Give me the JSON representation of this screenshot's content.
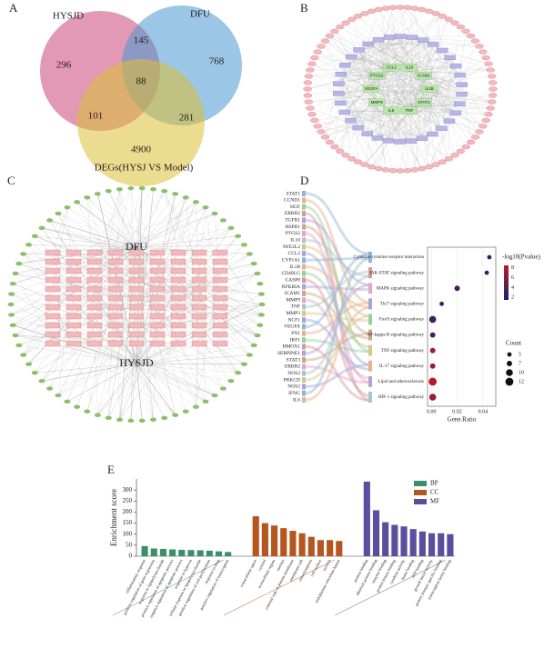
{
  "chart_data": [
    {
      "type": "venn",
      "panel": "A",
      "sets": [
        {
          "name": "HYSJD",
          "color": "#c8457a"
        },
        {
          "name": "DFU",
          "color": "#4a97d0"
        },
        {
          "name": "DEGs(HYSJ VS Model)",
          "color": "#dcc033"
        }
      ],
      "regions": [
        {
          "sets": "HYSJD",
          "value": 296
        },
        {
          "sets": "HYSJD DFU",
          "value": 145
        },
        {
          "sets": "DFU",
          "value": 768
        },
        {
          "sets": "HYSJD DFU DEGs",
          "value": 88
        },
        {
          "sets": "HYSJD DEGs",
          "value": 101
        },
        {
          "sets": "DFU DEGs",
          "value": 281
        },
        {
          "sets": "DEGs",
          "value": 4900
        }
      ]
    },
    {
      "type": "network",
      "panel": "B",
      "nodes": [
        "IL1B",
        "STAT3",
        "TNF",
        "IL6",
        "MMP9",
        "VEGFA",
        "PTGS2",
        "CCL2",
        "IL10",
        "ICAM1"
      ]
    },
    {
      "type": "network",
      "panel": "C",
      "nodes": [
        "DFU",
        "HYSJD"
      ]
    },
    {
      "type": "dot",
      "panel": "D",
      "genes": [
        "STAT1",
        "CCND1",
        "HGF",
        "ERBB2",
        "TGFB1",
        "HSPB1",
        "PTGS2",
        "IL10",
        "NFE2L2",
        "CCL2",
        "CYP1A1",
        "IL1B",
        "CD40LG",
        "CASP8",
        "NFKBIA",
        "ICAM1",
        "MMP9",
        "TNF",
        "MMP3",
        "NCF1",
        "VEGFA",
        "FN1",
        "IRF1",
        "HMOX1",
        "SERPINE1",
        "STAT3",
        "ERBB2",
        "NOS3",
        "PRKCD",
        "NOS2",
        "IFNG",
        "IL6"
      ],
      "categories": [
        "Cytokine-cytokine receptor interaction",
        "JAK-STAT signaling pathway",
        "MAPK signaling pathway",
        "Th17 signaling pathway",
        "FoxO signaling pathway",
        "NF-kappa B signaling pathway",
        "TNF signaling pathway",
        "IL-17 signaling pathway",
        "Lipid and atherosclerosis",
        "HIF-1 signaling pathway"
      ],
      "x": [
        0.045,
        0.043,
        0.02,
        0.008,
        0.001,
        0.001,
        0.001,
        0.001,
        0.001,
        0.001
      ],
      "size": [
        5,
        5,
        7,
        5,
        10,
        7,
        7,
        7,
        12,
        10
      ],
      "color_values": [
        2.5,
        2.5,
        3,
        3,
        3,
        3.5,
        7,
        7,
        8,
        7
      ],
      "xlabel": "Gene.Ratio",
      "xlim": [
        -0.003,
        0.05
      ],
      "xticks": [
        {
          "value": 0,
          "label": "0.00"
        },
        {
          "value": 0.02,
          "label": "0.02"
        },
        {
          "value": 0.04,
          "label": "0.04"
        }
      ],
      "color_title": "-log10(Pvalue)",
      "color_lim": [
        1.5,
        8.5
      ],
      "color_ticks": [
        2,
        4,
        6,
        8
      ],
      "size_title": "Count",
      "size_ticks": [
        5,
        7,
        10,
        12
      ]
    },
    {
      "type": "bar",
      "panel": "E",
      "ylabel": "Enrichment score",
      "ylim": [
        0,
        350
      ],
      "yticks": [
        0,
        50,
        100,
        150,
        200,
        250,
        300
      ],
      "series": [
        {
          "name": "BP",
          "color": "#3d8f6b",
          "categories": [
            "inflammatory response",
            "positive regulation of gene expression",
            "response to lipopolysaccharide",
            "positive regulation of apoptotic process",
            "negative regulation of apoptotic process",
            "response to hypoxia",
            "cellular response to lipopolysaccharide",
            "positive regulation of cell proliferation",
            "response to drug",
            "positive regulation of transcription"
          ],
          "values": [
            46,
            35,
            33,
            31,
            29,
            28,
            27,
            25,
            22,
            19
          ]
        },
        {
          "name": "CC",
          "color": "#b5561f",
          "categories": [
            "extracellular space",
            "cytosol",
            "extracellular region",
            "nucleus",
            "external side of plasma membrane",
            "membrane raft",
            "mitochondrion",
            "cell surface",
            "caveola",
            "endoplasmic reticulum lumen"
          ],
          "values": [
            181,
            150,
            139,
            127,
            115,
            104,
            88,
            73,
            73,
            69
          ]
        },
        {
          "name": "MF",
          "color": "#5a4f9e",
          "categories": [
            "protein binding",
            "identical protein binding",
            "enzyme binding",
            "protein kinase binding",
            "cytokine activity",
            "heme binding",
            "ATP binding",
            "growth factor activity",
            "protein domain specific binding",
            "transcription factor binding"
          ],
          "values": [
            338,
            208,
            154,
            142,
            135,
            123,
            112,
            104,
            104,
            100
          ]
        }
      ]
    }
  ]
}
